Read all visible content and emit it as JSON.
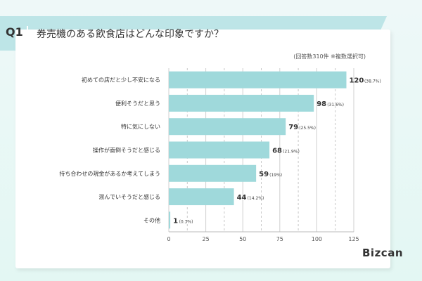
{
  "header": {
    "q_label": "Q1",
    "title": "券売機のある飲食店はどんな印象ですか？",
    "note": "(回答数310件 ※複数選択可)"
  },
  "brand": {
    "logo": "Bizcan"
  },
  "colors": {
    "bar": "#9fd9db",
    "band": "#bde5e7",
    "background": "#e6f7f4"
  },
  "chart_data": {
    "type": "bar",
    "orientation": "horizontal",
    "categories": [
      "初めての店だと少し不安になる",
      "便利そうだと思う",
      "特に気にしない",
      "操作が面倒そうだと感じる",
      "持ち合わせの現金があるか考えてしまう",
      "混んでいそうだと感じる",
      "その他"
    ],
    "values": [
      120,
      98,
      79,
      68,
      59,
      44,
      1
    ],
    "percent_labels": [
      "(38.7%)",
      "(31.6%)",
      "(25.5%)",
      "(21.9%)",
      "(19%)",
      "(14.2%)",
      "(0.3%)"
    ],
    "xlim": [
      0,
      125
    ],
    "xticks": [
      "0",
      "25",
      "50",
      "75",
      "100",
      "125"
    ],
    "grid": true
  }
}
